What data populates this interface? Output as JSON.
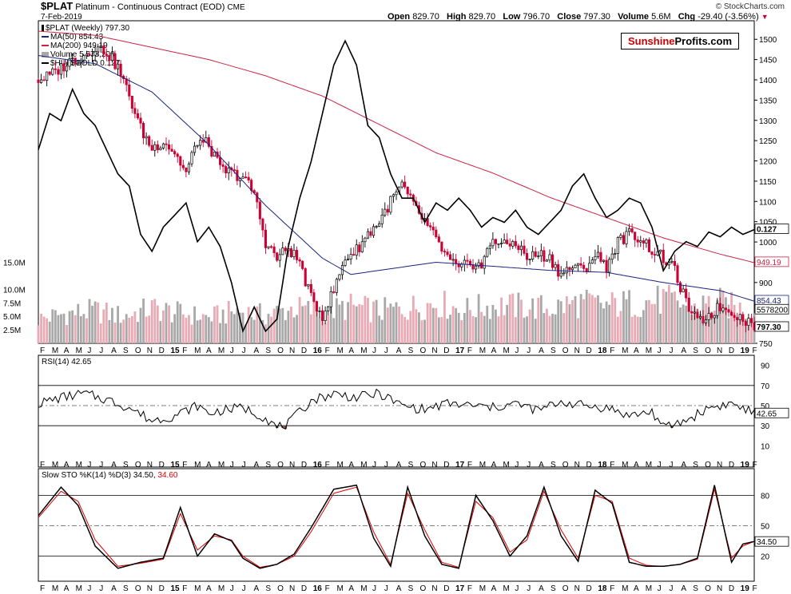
{
  "header": {
    "symbol": "$PLAT",
    "description": "Platinum - Continuous Contract (EOD)",
    "exchange": "CME",
    "date": "7-Feb-2019",
    "copyright": "© StockCharts.com",
    "open_label": "Open",
    "open": "829.70",
    "high_label": "High",
    "high": "829.70",
    "low_label": "Low",
    "low": "796.70",
    "close_label": "Close",
    "close": "797.30",
    "volume_label": "Volume",
    "volume": "5.6M",
    "chg_label": "Chg",
    "chg": "-29.40 (-3.56%)",
    "chg_arrow": "▼"
  },
  "brand": {
    "part1": "Sunshine",
    "part2": "Profits.com"
  },
  "legend": {
    "price": "$PLAT (Weekly) 797.30",
    "ma50": "MA(50) 854.43",
    "ma200": "MA(200) 949.19",
    "volume": "Volume 5,578,200",
    "ratio": "$HUI:$GOLD 0.127"
  },
  "rsi_legend": "RSI(14) 42.65",
  "sto_legend": {
    "text": "Slow STO %K(14) %D(3) 34.50,",
    "value": "34.60"
  },
  "colors": {
    "up": "#000000",
    "down": "#cc0033",
    "ma50": "#1a237e",
    "ma200": "#cc2244",
    "ratio": "#000000",
    "vol_up": "#a8a8a8",
    "vol_down": "#e8aab4",
    "rsi_fill": "#8a5a50",
    "sto_d": "#dd0000"
  },
  "chart_data": [
    {
      "type": "line",
      "title": "$PLAT Platinum - Continuous Contract (EOD) Weekly",
      "price_axis": {
        "ylim": [
          750,
          1530
        ],
        "ticks": [
          750,
          800,
          850,
          900,
          950,
          1000,
          1050,
          1100,
          1150,
          1200,
          1250,
          1300,
          1350,
          1400,
          1450,
          1500
        ],
        "tick_labels": [
          "750",
          "",
          "",
          "900",
          "",
          "1000",
          "1050",
          "1100",
          "1150",
          "1200",
          "1250",
          "1300",
          "1350",
          "1400",
          "1450",
          "1500"
        ]
      },
      "volume_axis": {
        "ticks": [
          2.5,
          5.0,
          7.5,
          10.0,
          15.0
        ],
        "tick_labels": [
          "2.5M",
          "5.0M",
          "7.5M",
          "10.0M",
          "15.0M"
        ],
        "ylim": [
          0,
          17
        ]
      },
      "value_tags": {
        "ratio": "0.127",
        "ma200": "949.19",
        "ma50": "854.43",
        "volume": "5578200",
        "close": "797.30"
      },
      "x_tick_labels": [
        "F",
        "M",
        "A",
        "M",
        "J",
        "J",
        "A",
        "S",
        "O",
        "N",
        "D",
        "15",
        "F",
        "M",
        "A",
        "M",
        "J",
        "J",
        "A",
        "S",
        "O",
        "N",
        "D",
        "16",
        "F",
        "M",
        "A",
        "M",
        "J",
        "J",
        "A",
        "S",
        "O",
        "N",
        "D",
        "17",
        "F",
        "M",
        "A",
        "M",
        "J",
        "J",
        "A",
        "S",
        "O",
        "N",
        "D",
        "18",
        "F",
        "M",
        "A",
        "M",
        "J",
        "J",
        "A",
        "S",
        "O",
        "N",
        "D",
        "19",
        "F"
      ],
      "series": [
        {
          "name": "$PLAT (Weekly)",
          "type": "close",
          "x": [
            0,
            4,
            8,
            12,
            16,
            20,
            24,
            28,
            32,
            36,
            40,
            44,
            48,
            52,
            56,
            60,
            64,
            68,
            72,
            76,
            80,
            84,
            88,
            92,
            96,
            100,
            104,
            108,
            112,
            116,
            120,
            124,
            128,
            132,
            136,
            140,
            144,
            148,
            152,
            156,
            160,
            164,
            168,
            172,
            176,
            180,
            184,
            188,
            192,
            196,
            200,
            204,
            208,
            212,
            216,
            220,
            224,
            228,
            232,
            236,
            240,
            244,
            248,
            252
          ],
          "values": [
            1400,
            1410,
            1430,
            1450,
            1460,
            1480,
            1470,
            1430,
            1360,
            1280,
            1230,
            1250,
            1220,
            1170,
            1250,
            1240,
            1180,
            1170,
            1160,
            1120,
            1000,
            960,
            985,
            950,
            860,
            820,
            880,
            960,
            980,
            1020,
            1050,
            1100,
            1140,
            1090,
            1050,
            1005,
            960,
            930,
            950,
            940,
            1010,
            990,
            1000,
            960,
            970,
            960,
            920,
            940,
            930,
            970,
            940,
            1000,
            1020,
            1010,
            980,
            960,
            930,
            850,
            800,
            820,
            840,
            830,
            810,
            797
          ]
        },
        {
          "name": "MA(50)",
          "x": [
            0,
            20,
            40,
            60,
            80,
            100,
            110,
            120,
            140,
            160,
            180,
            200,
            220,
            240,
            252
          ],
          "values": [
            1460,
            1440,
            1370,
            1240,
            1090,
            960,
            920,
            930,
            950,
            940,
            930,
            925,
            900,
            880,
            854
          ]
        },
        {
          "name": "MA(200)",
          "x": [
            0,
            20,
            40,
            60,
            80,
            100,
            120,
            140,
            160,
            180,
            200,
            220,
            240,
            252
          ],
          "values": [
            1520,
            1510,
            1480,
            1450,
            1410,
            1360,
            1290,
            1220,
            1170,
            1110,
            1060,
            1010,
            970,
            949
          ]
        },
        {
          "name": "$HUI:$GOLD",
          "x": [
            0,
            4,
            8,
            12,
            16,
            20,
            24,
            28,
            32,
            36,
            40,
            44,
            48,
            52,
            56,
            60,
            64,
            68,
            72,
            76,
            80,
            84,
            88,
            92,
            96,
            100,
            104,
            108,
            112,
            116,
            120,
            124,
            128,
            132,
            136,
            140,
            144,
            148,
            152,
            156,
            160,
            164,
            168,
            172,
            176,
            180,
            184,
            188,
            192,
            196,
            200,
            204,
            208,
            212,
            216,
            220,
            224,
            228,
            232,
            236,
            240,
            244,
            248,
            252
          ],
          "values": [
            0.16,
            0.175,
            0.172,
            0.185,
            0.175,
            0.17,
            0.16,
            0.15,
            0.145,
            0.125,
            0.118,
            0.128,
            0.133,
            0.138,
            0.122,
            0.128,
            0.12,
            0.105,
            0.085,
            0.095,
            0.085,
            0.09,
            0.12,
            0.14,
            0.155,
            0.175,
            0.195,
            0.205,
            0.195,
            0.17,
            0.165,
            0.15,
            0.14,
            0.14,
            0.13,
            0.138,
            0.135,
            0.14,
            0.135,
            0.128,
            0.132,
            0.13,
            0.135,
            0.128,
            0.125,
            0.13,
            0.135,
            0.145,
            0.15,
            0.14,
            0.132,
            0.135,
            0.14,
            0.138,
            0.128,
            0.11,
            0.118,
            0.122,
            0.12,
            0.126,
            0.124,
            0.128,
            0.125,
            0.127
          ],
          "value_scale_note": "overlay on price panel"
        },
        {
          "name": "Volume",
          "unit": "M",
          "x": [
            0,
            10,
            20,
            30,
            40,
            50,
            60,
            70,
            80,
            90,
            100,
            110,
            120,
            130,
            140,
            150,
            160,
            170,
            180,
            190,
            200,
            210,
            220,
            230,
            240,
            252
          ],
          "values": [
            4.5,
            5.5,
            6.0,
            5.0,
            6.5,
            5.5,
            4.8,
            6.0,
            5.2,
            6.5,
            5.8,
            6.8,
            6.0,
            6.5,
            7.5,
            6.2,
            7.0,
            6.8,
            6.5,
            7.5,
            7.0,
            7.5,
            8.0,
            6.8,
            7.5,
            5.6
          ]
        }
      ]
    },
    {
      "type": "line",
      "title": "RSI(14)",
      "ylim": [
        0,
        100
      ],
      "ticks": [
        10,
        30,
        50,
        70,
        90
      ],
      "reference_lines": [
        30,
        50,
        70
      ],
      "value_tag": "42.65",
      "series": [
        {
          "name": "RSI(14)",
          "x": [
            0,
            8,
            16,
            24,
            32,
            40,
            48,
            56,
            60,
            64,
            72,
            80,
            84,
            88,
            96,
            104,
            112,
            120,
            128,
            136,
            144,
            152,
            160,
            168,
            176,
            184,
            192,
            200,
            208,
            216,
            220,
            228,
            236,
            244,
            252
          ],
          "values": [
            52,
            58,
            62,
            56,
            48,
            35,
            40,
            50,
            42,
            45,
            48,
            38,
            28,
            32,
            55,
            62,
            58,
            62,
            50,
            46,
            52,
            50,
            48,
            52,
            45,
            54,
            50,
            48,
            40,
            44,
            28,
            35,
            48,
            52,
            42.65
          ]
        }
      ]
    },
    {
      "type": "line",
      "title": "Slow STO %K(14) %D(3)",
      "ylim": [
        0,
        100
      ],
      "ticks": [
        20,
        50,
        80
      ],
      "reference_lines": [
        20,
        50,
        80
      ],
      "value_tag": "34.50",
      "series": [
        {
          "name": "%K",
          "x": [
            0,
            8,
            14,
            20,
            28,
            36,
            44,
            50,
            56,
            62,
            68,
            72,
            78,
            84,
            90,
            96,
            104,
            112,
            118,
            124,
            130,
            136,
            142,
            148,
            154,
            160,
            166,
            172,
            178,
            184,
            190,
            196,
            202,
            208,
            214,
            220,
            226,
            232,
            238,
            244,
            248,
            252
          ],
          "values": [
            60,
            88,
            70,
            30,
            8,
            14,
            18,
            68,
            20,
            42,
            35,
            18,
            8,
            12,
            22,
            48,
            86,
            90,
            38,
            10,
            88,
            40,
            12,
            8,
            80,
            55,
            20,
            40,
            88,
            40,
            15,
            85,
            72,
            14,
            10,
            10,
            12,
            18,
            90,
            14,
            32,
            34.5
          ]
        },
        {
          "name": "%D",
          "x": [
            0,
            8,
            14,
            20,
            28,
            36,
            44,
            50,
            56,
            62,
            68,
            72,
            78,
            84,
            90,
            96,
            104,
            112,
            118,
            124,
            130,
            136,
            142,
            148,
            154,
            160,
            166,
            172,
            178,
            184,
            190,
            196,
            202,
            208,
            214,
            220,
            226,
            232,
            238,
            244,
            248,
            252
          ],
          "values": [
            58,
            84,
            74,
            36,
            10,
            13,
            17,
            62,
            26,
            40,
            36,
            20,
            9,
            12,
            20,
            44,
            82,
            88,
            44,
            12,
            82,
            46,
            14,
            9,
            74,
            58,
            24,
            36,
            84,
            46,
            18,
            80,
            74,
            18,
            11,
            10,
            12,
            17,
            86,
            18,
            30,
            34.6
          ]
        }
      ]
    }
  ]
}
